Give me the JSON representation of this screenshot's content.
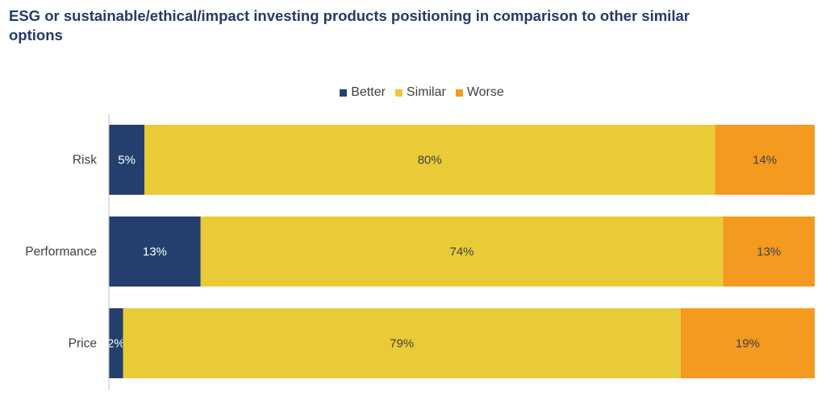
{
  "chart_data": {
    "type": "bar",
    "orientation": "horizontal",
    "stacked": true,
    "title": "ESG or sustainable/ethical/impact investing products positioning in comparison to other similar options",
    "categories": [
      "Risk",
      "Performance",
      "Price"
    ],
    "series": [
      {
        "name": "Better",
        "values": [
          5,
          13,
          2
        ],
        "labels": [
          "5%",
          "13%",
          "2%"
        ],
        "color": "#243f6e",
        "label_color": "#ffffff"
      },
      {
        "name": "Similar",
        "values": [
          80,
          74,
          79
        ],
        "labels": [
          "80%",
          "74%",
          "79%"
        ],
        "color": "#e9cb37",
        "label_color": "#404040"
      },
      {
        "name": "Worse",
        "values": [
          14,
          13,
          19
        ],
        "labels": [
          "14%",
          "13%",
          "19%"
        ],
        "color": "#f39a1f",
        "label_color": "#404040"
      }
    ],
    "legend_position": "top",
    "grid": false,
    "xlim": [
      0,
      100
    ]
  }
}
